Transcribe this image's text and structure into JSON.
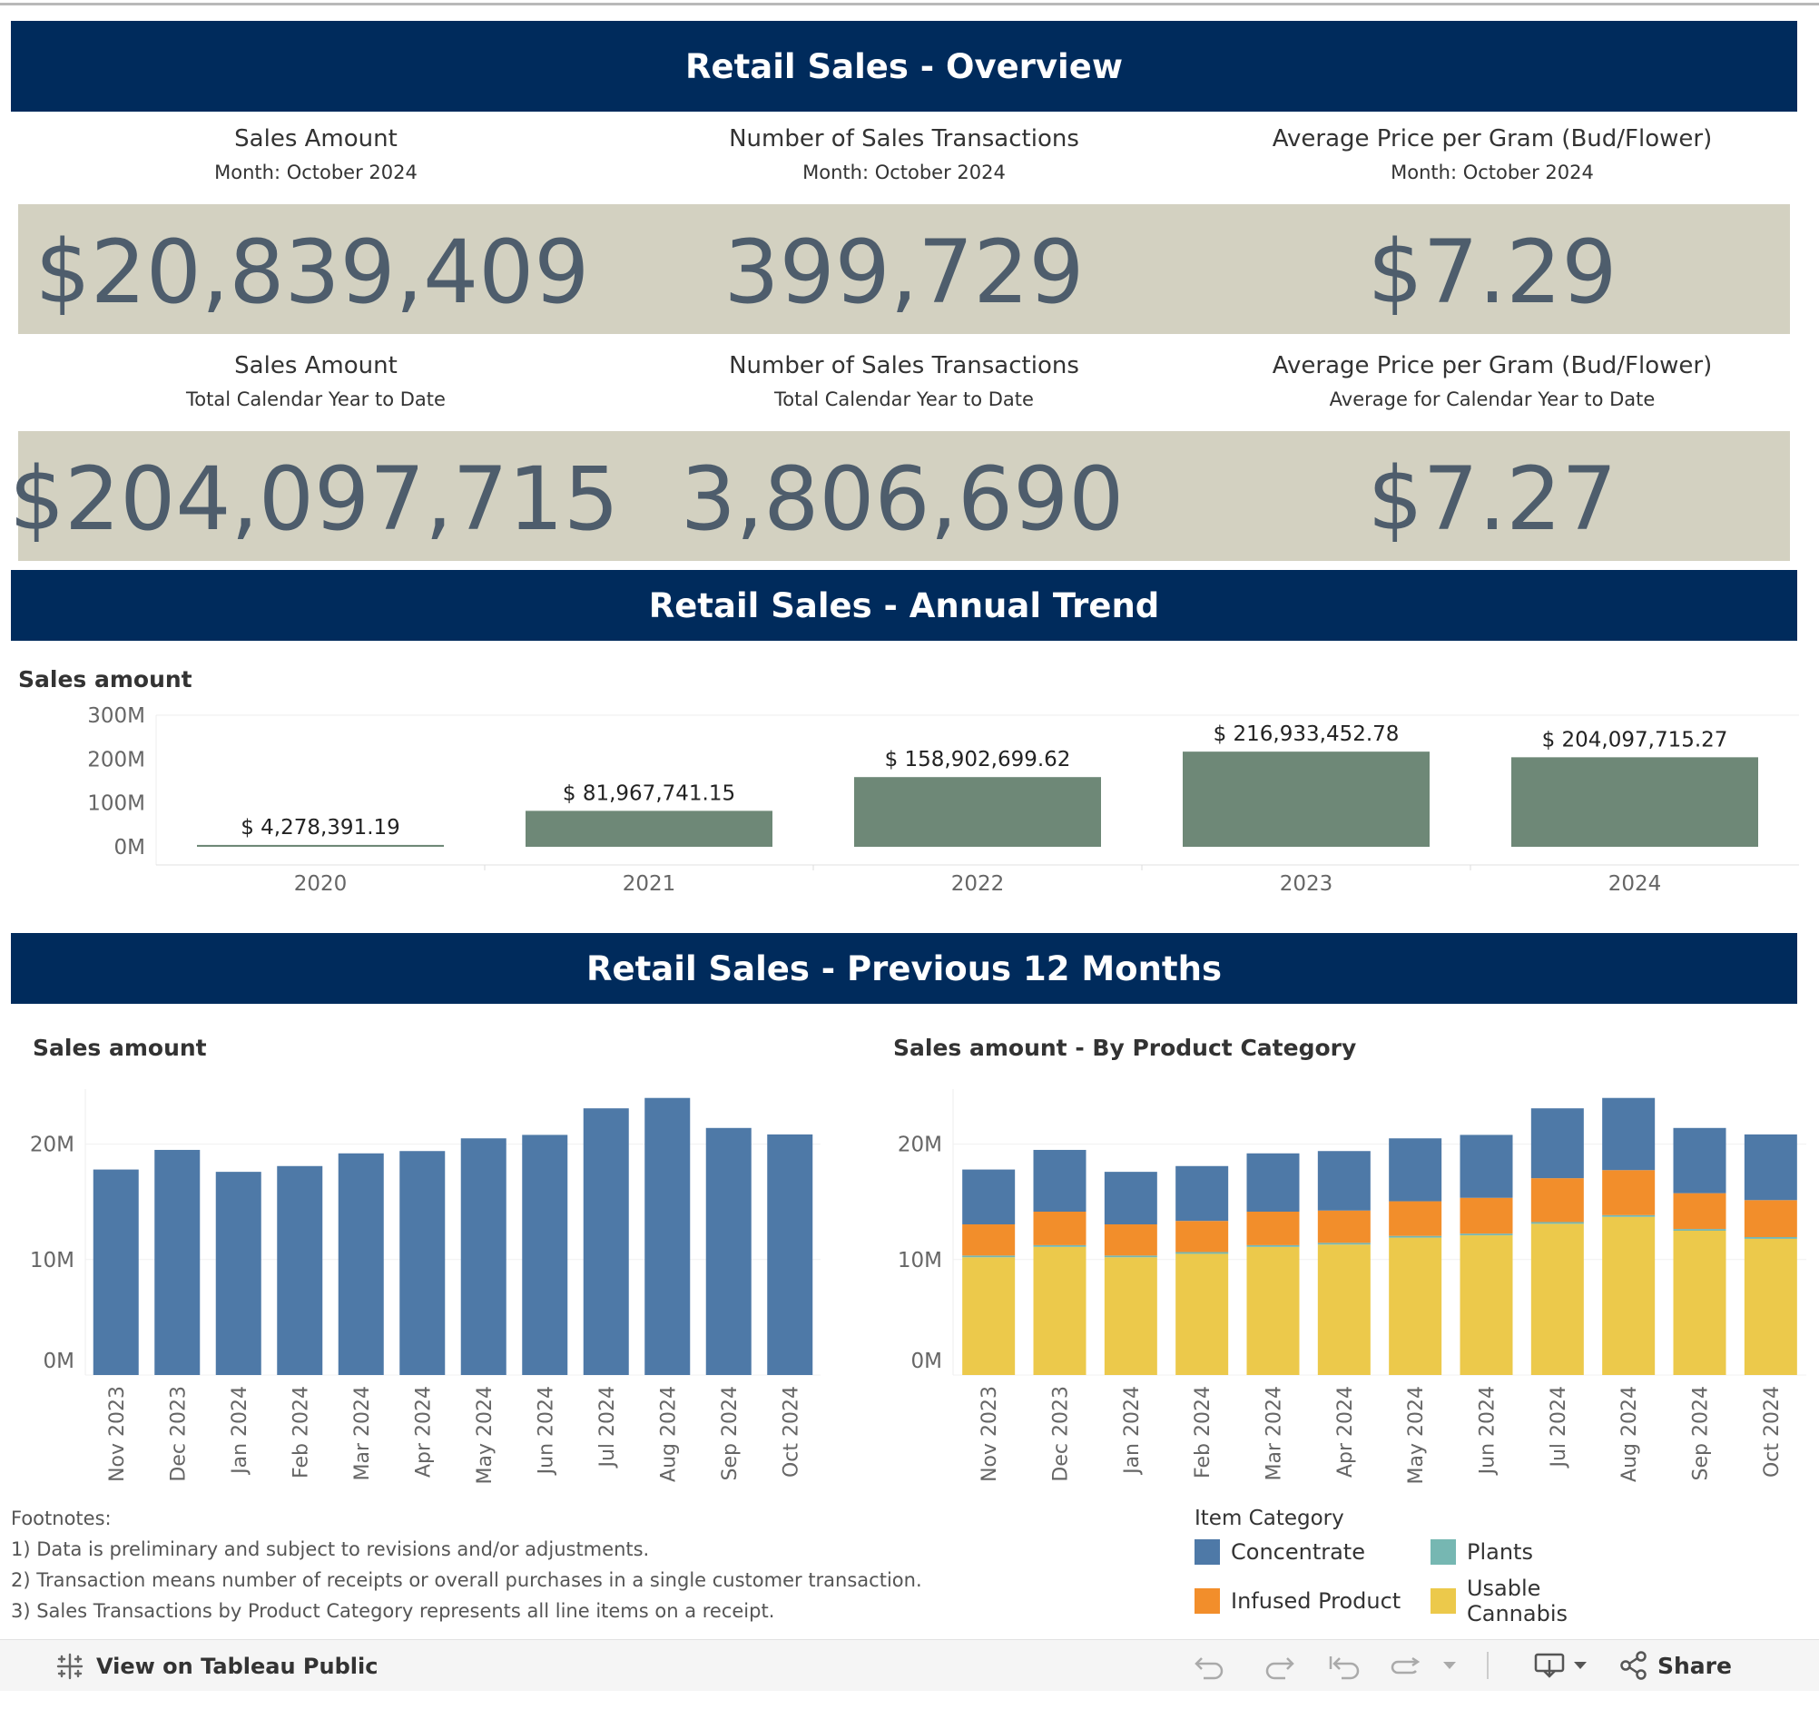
{
  "banners": {
    "overview": "Retail Sales - Overview",
    "annual": "Retail Sales - Annual Trend",
    "months": "Retail Sales - Previous 12 Months"
  },
  "kpi_month": [
    {
      "title": "Sales Amount",
      "subtitle": "Month: October 2024",
      "value": "$20,839,409"
    },
    {
      "title": "Number of Sales Transactions",
      "subtitle": "Month: October 2024",
      "value": "399,729"
    },
    {
      "title": "Average Price per Gram (Bud/Flower)",
      "subtitle": "Month: October 2024",
      "value": "$7.29"
    }
  ],
  "kpi_ytd": [
    {
      "title": "Sales Amount",
      "subtitle": "Total Calendar Year to Date",
      "value": "$204,097,715"
    },
    {
      "title": "Number of Sales Transactions",
      "subtitle": "Total Calendar Year to Date",
      "value": "3,806,690"
    },
    {
      "title": "Average Price per Gram (Bud/Flower)",
      "subtitle": "Average for Calendar Year to Date",
      "value": "$7.27"
    }
  ],
  "chart_data": [
    {
      "type": "bar",
      "title": "Sales amount",
      "categories": [
        "2020",
        "2021",
        "2022",
        "2023",
        "2024"
      ],
      "values": [
        4278391.19,
        81967741.15,
        158902699.62,
        216933452.78,
        204097715.27
      ],
      "labels": [
        "$ 4,278,391.19",
        "$ 81,967,741.15",
        "$ 158,902,699.62",
        "$ 216,933,452.78",
        "$ 204,097,715.27"
      ],
      "y_ticks": [
        {
          "v": 0,
          "label": "0M"
        },
        {
          "v": 100000000,
          "label": "100M"
        },
        {
          "v": 200000000,
          "label": "200M"
        },
        {
          "v": 300000000,
          "label": "300M"
        }
      ],
      "ylim": [
        0,
        300000000
      ],
      "color": "#6e8877"
    },
    {
      "type": "bar",
      "title": "Sales amount",
      "categories": [
        "Nov 2023",
        "Dec 2023",
        "Jan 2024",
        "Feb 2024",
        "Mar 2024",
        "Apr 2024",
        "May 2024",
        "Jun 2024",
        "Jul 2024",
        "Aug 2024",
        "Sep 2024",
        "Oct 2024"
      ],
      "values": [
        17800000,
        19500000,
        17600000,
        18100000,
        19200000,
        19400000,
        20500000,
        20800000,
        23100000,
        24000000,
        21400000,
        20839409
      ],
      "y_ticks": [
        {
          "v": 0,
          "label": "0M"
        },
        {
          "v": 10000000,
          "label": "10M"
        },
        {
          "v": 20000000,
          "label": "20M"
        }
      ],
      "ylim": [
        0,
        25000000
      ],
      "color": "#4e79a7"
    },
    {
      "type": "stacked_bar",
      "title": "Sales amount - By Product Category",
      "categories": [
        "Nov 2023",
        "Dec 2023",
        "Jan 2024",
        "Feb 2024",
        "Mar 2024",
        "Apr 2024",
        "May 2024",
        "Jun 2024",
        "Jul 2024",
        "Aug 2024",
        "Sep 2024",
        "Oct 2024"
      ],
      "series": [
        {
          "name": "Usable Cannabis",
          "color": "#ecc94b",
          "values": [
            10200000,
            11100000,
            10200000,
            10500000,
            11100000,
            11300000,
            11900000,
            12100000,
            13100000,
            13700000,
            12500000,
            11800000
          ]
        },
        {
          "name": "Plants",
          "color": "#76b7b2",
          "values": [
            150000,
            150000,
            150000,
            150000,
            150000,
            150000,
            150000,
            150000,
            150000,
            150000,
            150000,
            150000
          ]
        },
        {
          "name": "Infused Product",
          "color": "#f28e2b",
          "values": [
            2700000,
            2900000,
            2700000,
            2700000,
            2900000,
            2800000,
            3000000,
            3100000,
            3800000,
            3900000,
            3100000,
            3200000
          ]
        },
        {
          "name": "Concentrate",
          "color": "#4e79a7",
          "values": [
            4750000,
            5350000,
            4550000,
            4750000,
            5050000,
            5150000,
            5450000,
            5450000,
            6050000,
            6250000,
            5650000,
            5689409
          ]
        }
      ],
      "y_ticks": [
        {
          "v": 0,
          "label": "0M"
        },
        {
          "v": 10000000,
          "label": "10M"
        },
        {
          "v": 20000000,
          "label": "20M"
        }
      ],
      "ylim": [
        0,
        25000000
      ]
    }
  ],
  "footnotes": {
    "heading": "Footnotes:",
    "lines": [
      "1) Data is preliminary and subject to revisions and/or adjustments.",
      "2) Transaction means number of receipts or overall purchases in a single customer transaction.",
      "3) Sales Transactions by Product Category  represents all line items on a receipt."
    ]
  },
  "legend": {
    "title": "Item Category",
    "items": [
      {
        "label": "Concentrate",
        "color": "#4e79a7"
      },
      {
        "label": "Plants",
        "color": "#76b7b2"
      },
      {
        "label": "Infused Product",
        "color": "#f28e2b"
      },
      {
        "label": "Usable Cannabis",
        "color": "#ecc94b"
      }
    ]
  },
  "toolbar": {
    "view_label": "View on Tableau Public",
    "share_label": "Share",
    "icons": [
      "tableau-logo-icon",
      "undo-icon",
      "redo-icon",
      "revert-icon",
      "refresh-icon",
      "dropdown-icon",
      "download-icon",
      "share-icon"
    ]
  }
}
